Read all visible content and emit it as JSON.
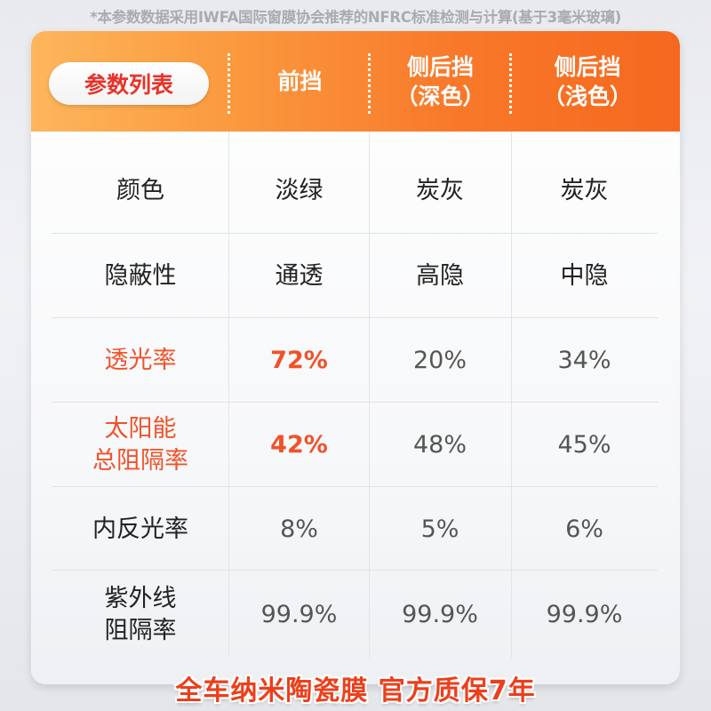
{
  "note": "*本参数数据采用IWFA国际窗膜协会推荐的NFRC标准检测与计算(基于3毫米玻璃)",
  "header": {
    "title": "参数列表",
    "columns": [
      {
        "line1": "前挡",
        "line2": ""
      },
      {
        "line1": "侧后挡",
        "line2": "（深色）"
      },
      {
        "line1": "侧后挡",
        "line2": "（浅色）"
      }
    ]
  },
  "rows": [
    {
      "label1": "颜色",
      "label2": "",
      "values": [
        "淡绿",
        "炭灰",
        "炭灰"
      ]
    },
    {
      "label1": "隐蔽性",
      "label2": "",
      "values": [
        "通透",
        "高隐",
        "中隐"
      ]
    },
    {
      "label1": "透光率",
      "label2": "",
      "values": [
        "72%",
        "20%",
        "34%"
      ],
      "highlight": true
    },
    {
      "label1": "太阳能",
      "label2": "总阻隔率",
      "values": [
        "42%",
        "48%",
        "45%"
      ],
      "highlight": true
    },
    {
      "label1": "内反光率",
      "label2": "",
      "values": [
        "8%",
        "5%",
        "6%"
      ]
    },
    {
      "label1": "紫外线",
      "label2": "阻隔率",
      "values": [
        "99.9%",
        "99.9%",
        "99.9%"
      ]
    }
  ],
  "footer": "全车纳米陶瓷膜  官方质保7年",
  "colors": {
    "accent": "#f0522a",
    "header_start": "#fdb65c",
    "header_end": "#f6681f"
  }
}
